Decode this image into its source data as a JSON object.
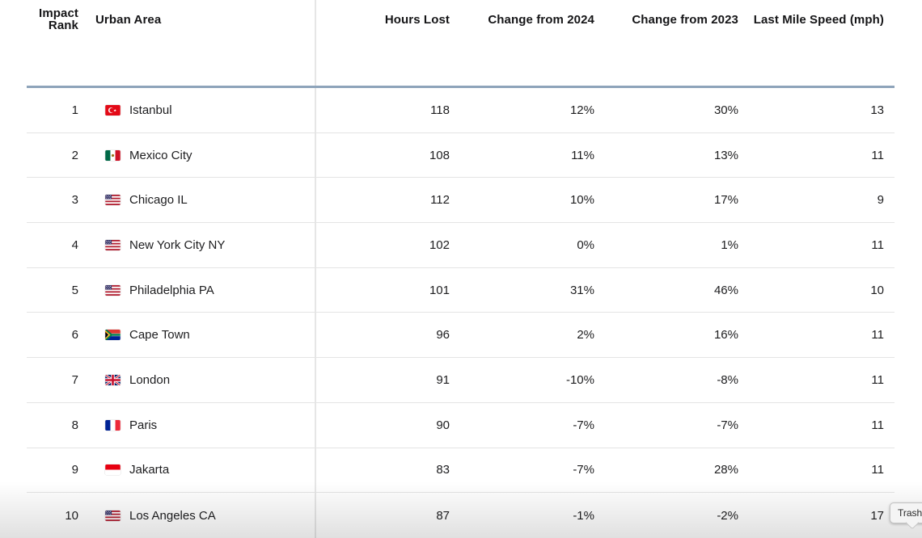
{
  "colors": {
    "header-rule": "#8ea4ba",
    "row-border": "#e4e4e4",
    "divider": "#e6e6e6",
    "text": "#1d1d1f",
    "header-text": "#151517",
    "tooltip-bg": "#f4f4f4",
    "tooltip-border": "#c3c3c3",
    "tooltip-text": "#2a2a2a"
  },
  "table": {
    "columns": {
      "impact_rank": {
        "line1": "Impact",
        "line2": "Rank"
      },
      "urban_area": "Urban Area",
      "hours_lost": "Hours Lost",
      "change_2024": "Change from 2024",
      "change_2023": "Change from 2023",
      "last_mile_speed": "Last Mile Speed (mph)"
    },
    "rows": [
      {
        "rank": "1",
        "flag": "tr",
        "flag_icon": "flag-turkey-icon",
        "urban_area": "Istanbul",
        "hours_lost": "118",
        "change_2024": "12%",
        "change_2023": "30%",
        "last_mile_speed": "13"
      },
      {
        "rank": "2",
        "flag": "mx",
        "flag_icon": "flag-mexico-icon",
        "urban_area": "Mexico City",
        "hours_lost": "108",
        "change_2024": "11%",
        "change_2023": "13%",
        "last_mile_speed": "11"
      },
      {
        "rank": "3",
        "flag": "us",
        "flag_icon": "flag-usa-icon",
        "urban_area": "Chicago IL",
        "hours_lost": "112",
        "change_2024": "10%",
        "change_2023": "17%",
        "last_mile_speed": "9"
      },
      {
        "rank": "4",
        "flag": "us",
        "flag_icon": "flag-usa-icon",
        "urban_area": "New York City NY",
        "hours_lost": "102",
        "change_2024": "0%",
        "change_2023": "1%",
        "last_mile_speed": "11"
      },
      {
        "rank": "5",
        "flag": "us",
        "flag_icon": "flag-usa-icon",
        "urban_area": "Philadelphia PA",
        "hours_lost": "101",
        "change_2024": "31%",
        "change_2023": "46%",
        "last_mile_speed": "10"
      },
      {
        "rank": "6",
        "flag": "za",
        "flag_icon": "flag-south-africa-icon",
        "urban_area": "Cape Town",
        "hours_lost": "96",
        "change_2024": "2%",
        "change_2023": "16%",
        "last_mile_speed": "11"
      },
      {
        "rank": "7",
        "flag": "gb",
        "flag_icon": "flag-uk-icon",
        "urban_area": "London",
        "hours_lost": "91",
        "change_2024": "-10%",
        "change_2023": "-8%",
        "last_mile_speed": "11"
      },
      {
        "rank": "8",
        "flag": "fr",
        "flag_icon": "flag-france-icon",
        "urban_area": "Paris",
        "hours_lost": "90",
        "change_2024": "-7%",
        "change_2023": "-7%",
        "last_mile_speed": "11"
      },
      {
        "rank": "9",
        "flag": "id",
        "flag_icon": "flag-indonesia-icon",
        "urban_area": "Jakarta",
        "hours_lost": "83",
        "change_2024": "-7%",
        "change_2023": "28%",
        "last_mile_speed": "11"
      },
      {
        "rank": "10",
        "flag": "us",
        "flag_icon": "flag-usa-icon",
        "urban_area": "Los Angeles CA",
        "hours_lost": "87",
        "change_2024": "-1%",
        "change_2023": "-2%",
        "last_mile_speed": "17"
      }
    ]
  },
  "tooltip": {
    "label": "Trash"
  }
}
